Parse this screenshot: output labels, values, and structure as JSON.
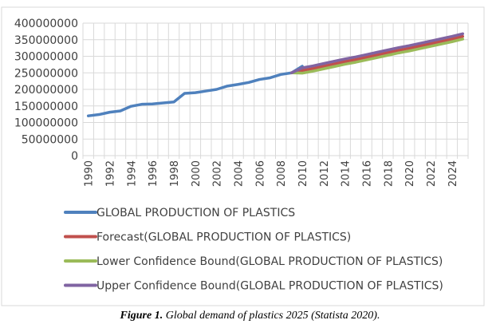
{
  "caption": {
    "label": "Figure 1.",
    "text": " Global demand of plastics 2025 (Statista 2020)."
  },
  "chart_data": {
    "type": "line",
    "title": "",
    "xlabel": "",
    "ylabel": "",
    "ylim": [
      0,
      400000000
    ],
    "yticks": [
      "0",
      "50000000",
      "100000000",
      "150000000",
      "200000000",
      "250000000",
      "300000000",
      "350000000",
      "400000000"
    ],
    "x": [
      1990,
      1991,
      1992,
      1993,
      1994,
      1995,
      1996,
      1997,
      1998,
      1999,
      2000,
      2001,
      2002,
      2003,
      2004,
      2005,
      2006,
      2007,
      2008,
      2009,
      2010,
      2011,
      2012,
      2013,
      2014,
      2015,
      2016,
      2017,
      2018,
      2019,
      2020,
      2021,
      2022,
      2023,
      2024,
      2025
    ],
    "xtick_labels": [
      "1990",
      "1992",
      "1994",
      "1996",
      "1998",
      "2000",
      "2002",
      "2004",
      "2006",
      "2008",
      "2010",
      "2012",
      "2014",
      "2016",
      "2018",
      "2020",
      "2022",
      "2024"
    ],
    "grid": true,
    "legend_position": "bottom",
    "series": [
      {
        "name": "GLOBAL PRODUCTION OF PLASTICS",
        "color": "#4F81BD",
        "values": [
          120000000,
          124000000,
          131000000,
          135000000,
          149000000,
          155000000,
          156000000,
          159000000,
          162000000,
          188000000,
          190000000,
          195000000,
          200000000,
          210000000,
          215000000,
          221000000,
          230000000,
          235000000,
          245000000,
          250000000,
          270000000
        ]
      },
      {
        "name": "Forecast(GLOBAL PRODUCTION OF PLASTICS)",
        "color": "#C0504D",
        "start": 2009,
        "values": [
          250000000,
          257000000,
          263000000,
          270000000,
          277000000,
          284000000,
          290000000,
          297000000,
          304000000,
          311000000,
          318000000,
          324000000,
          331000000,
          338000000,
          345000000,
          352000000,
          360000000
        ]
      },
      {
        "name": "Lower Confidence Bound(GLOBAL PRODUCTION OF PLASTICS)",
        "color": "#9BBB59",
        "start": 2009,
        "values": [
          250000000,
          249000000,
          255000000,
          262000000,
          269000000,
          276000000,
          282000000,
          289000000,
          296000000,
          303000000,
          310000000,
          316000000,
          323000000,
          330000000,
          337000000,
          344000000,
          352000000
        ]
      },
      {
        "name": "Upper Confidence Bound(GLOBAL PRODUCTION OF PLASTICS)",
        "color": "#8064A2",
        "start": 2009,
        "values": [
          250000000,
          265000000,
          271000000,
          278000000,
          285000000,
          292000000,
          298000000,
          305000000,
          312000000,
          319000000,
          326000000,
          332000000,
          339000000,
          346000000,
          353000000,
          360000000,
          368000000
        ]
      }
    ]
  }
}
